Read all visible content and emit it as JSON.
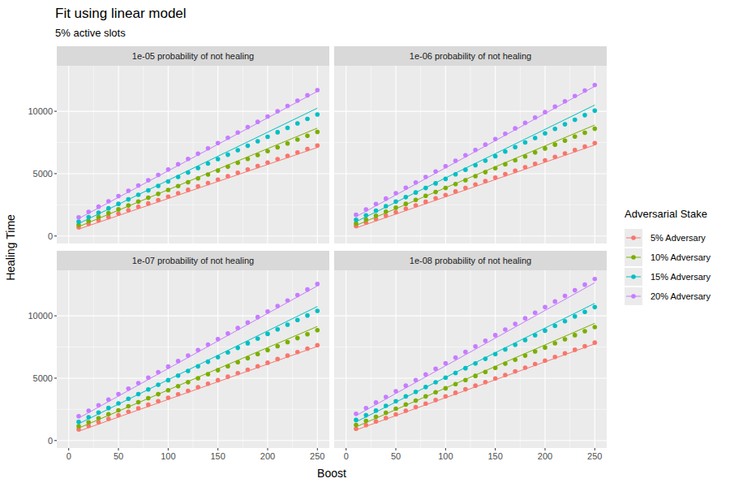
{
  "chart_data": {
    "type": "scatter",
    "title": "Fit using linear model",
    "subtitle": "5% active slots",
    "x_label": "Boost",
    "y_label": "Healing Time",
    "legend_title": "Adversarial Stake",
    "legend": "right",
    "grid": true,
    "marker": "circle",
    "line_style": "solid",
    "xlim": [
      -12,
      262
    ],
    "ylim": [
      -600,
      13650
    ],
    "xticks": [
      0,
      50,
      100,
      150,
      200,
      250
    ],
    "yticks": [
      0,
      5000,
      10000
    ],
    "x": [
      10,
      20,
      30,
      40,
      50,
      60,
      70,
      80,
      90,
      100,
      110,
      120,
      130,
      140,
      150,
      160,
      170,
      180,
      190,
      200,
      210,
      220,
      230,
      240,
      250
    ],
    "series": [
      {
        "name": "5% Adversary",
        "color": "#f8766d"
      },
      {
        "name": "10% Adversary",
        "color": "#7cae00"
      },
      {
        "name": "15% Adversary",
        "color": "#00bfc4"
      },
      {
        "name": "20% Adversary",
        "color": "#c77cff"
      }
    ],
    "panels": [
      {
        "title": "1e-05 probability of not healing",
        "values": [
          [
            700,
            970,
            1250,
            1520,
            1790,
            2060,
            2340,
            2610,
            2880,
            3160,
            3430,
            3700,
            3980,
            4250,
            4520,
            4790,
            5070,
            5340,
            5610,
            5890,
            6160,
            6430,
            6700,
            6980,
            7250
          ],
          [
            900,
            1210,
            1520,
            1830,
            2140,
            2450,
            2760,
            3070,
            3380,
            3690,
            4000,
            4310,
            4620,
            4930,
            5250,
            5560,
            5870,
            6180,
            6490,
            6800,
            7110,
            7420,
            7730,
            8040,
            8350
          ],
          [
            1150,
            1510,
            1870,
            2220,
            2580,
            2940,
            3300,
            3660,
            4020,
            4370,
            4730,
            5090,
            5450,
            5810,
            6170,
            6520,
            6880,
            7240,
            7600,
            7960,
            8320,
            8670,
            9030,
            9390,
            9750
          ],
          [
            1500,
            1930,
            2350,
            2780,
            3200,
            3630,
            4050,
            4480,
            4900,
            5330,
            5750,
            6180,
            6600,
            7030,
            7450,
            7880,
            8300,
            8730,
            9150,
            9580,
            10000,
            10430,
            10850,
            11280,
            11700
          ]
        ],
        "fit": [
          [
            550,
            7100
          ],
          [
            750,
            8650
          ],
          [
            1000,
            10250
          ],
          [
            1400,
            11600
          ]
        ]
      },
      {
        "title": "1e-06 probability of not healing",
        "values": [
          [
            800,
            1080,
            1350,
            1630,
            1910,
            2190,
            2460,
            2740,
            3020,
            3290,
            3570,
            3850,
            4130,
            4400,
            4680,
            4960,
            5230,
            5510,
            5790,
            6070,
            6340,
            6620,
            6900,
            7170,
            7450
          ],
          [
            1000,
            1320,
            1630,
            1950,
            2270,
            2580,
            2900,
            3220,
            3530,
            3850,
            4170,
            4480,
            4800,
            5120,
            5430,
            5750,
            6070,
            6380,
            6700,
            7020,
            7330,
            7650,
            7970,
            8280,
            8600
          ],
          [
            1300,
            1660,
            2030,
            2390,
            2760,
            3120,
            3490,
            3850,
            4220,
            4580,
            4950,
            5310,
            5680,
            6040,
            6400,
            6770,
            7130,
            7500,
            7860,
            8230,
            8590,
            8960,
            9320,
            9690,
            10050
          ],
          [
            1700,
            2130,
            2570,
            3000,
            3430,
            3870,
            4300,
            4730,
            5170,
            5600,
            6030,
            6470,
            6900,
            7330,
            7770,
            8200,
            8630,
            9070,
            9500,
            9930,
            10370,
            10800,
            11230,
            11670,
            12100
          ]
        ],
        "fit": [
          [
            650,
            7300
          ],
          [
            850,
            8900
          ],
          [
            1150,
            10500
          ],
          [
            1550,
            12000
          ]
        ]
      },
      {
        "title": "1e-07 probability of not healing",
        "values": [
          [
            900,
            1180,
            1460,
            1740,
            2030,
            2310,
            2590,
            2870,
            3150,
            3430,
            3710,
            3990,
            4280,
            4560,
            4840,
            5120,
            5400,
            5680,
            5960,
            6240,
            6530,
            6810,
            7090,
            7370,
            7650
          ],
          [
            1150,
            1470,
            1790,
            2110,
            2430,
            2750,
            3080,
            3400,
            3720,
            4040,
            4360,
            4680,
            5000,
            5320,
            5640,
            5960,
            6280,
            6600,
            6930,
            7250,
            7570,
            7890,
            8210,
            8530,
            8850
          ],
          [
            1500,
            1870,
            2240,
            2610,
            2980,
            3350,
            3730,
            4100,
            4470,
            4840,
            5210,
            5580,
            5950,
            6320,
            6690,
            7060,
            7430,
            7800,
            8170,
            8550,
            8920,
            9290,
            9660,
            10030,
            10400
          ],
          [
            1950,
            2390,
            2830,
            3280,
            3720,
            4160,
            4600,
            5040,
            5480,
            5930,
            6370,
            6810,
            7250,
            7690,
            8130,
            8580,
            9020,
            9460,
            9900,
            10340,
            10780,
            11230,
            11670,
            12110,
            12550
          ]
        ],
        "fit": [
          [
            750,
            7550
          ],
          [
            1000,
            9150
          ],
          [
            1350,
            10750
          ],
          [
            1800,
            12400
          ]
        ]
      },
      {
        "title": "1e-08 probability of not healing",
        "values": [
          [
            950,
            1240,
            1530,
            1810,
            2100,
            2390,
            2680,
            2960,
            3250,
            3540,
            3830,
            4110,
            4400,
            4690,
            4980,
            5260,
            5550,
            5840,
            6130,
            6410,
            6700,
            6990,
            7280,
            7560,
            7850
          ],
          [
            1250,
            1580,
            1900,
            2230,
            2560,
            2890,
            3210,
            3540,
            3870,
            4190,
            4520,
            4850,
            5180,
            5500,
            5830,
            6160,
            6480,
            6810,
            7140,
            7460,
            7790,
            8120,
            8450,
            8770,
            9100
          ],
          [
            1650,
            2030,
            2400,
            2780,
            3160,
            3540,
            3910,
            4290,
            4670,
            5040,
            5420,
            5800,
            6180,
            6550,
            6930,
            7310,
            7680,
            8060,
            8440,
            8810,
            9190,
            9570,
            9950,
            10320,
            10700
          ],
          [
            2150,
            2600,
            3050,
            3500,
            3950,
            4400,
            4850,
            5300,
            5750,
            6200,
            6650,
            7100,
            7550,
            8000,
            8450,
            8900,
            9350,
            9800,
            10250,
            10700,
            11150,
            11600,
            12050,
            12500,
            12950
          ]
        ],
        "fit": [
          [
            850,
            7750
          ],
          [
            1100,
            9400
          ],
          [
            1500,
            11000
          ],
          [
            2000,
            12650
          ]
        ]
      }
    ]
  }
}
